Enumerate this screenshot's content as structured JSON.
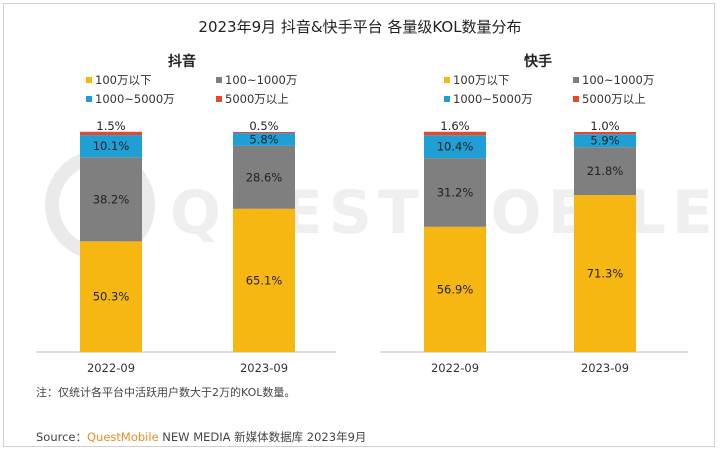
{
  "title": "2023年9月 抖音&快手平台 各量级KOL数量分布",
  "note": "注：仅统计各平台中活跃用户数大于2万的KOL数量。",
  "source": {
    "label": "Source：",
    "brand": "QuestMobile",
    "text": " NEW MEDIA 新媒体数据库 2023年9月"
  },
  "watermark": "QUESTMOBILE",
  "colors": {
    "100万以下": "#f6b713",
    "100~1000万": "#7f7f7f",
    "1000~5000万": "#1f9fd4",
    "5000万以上": "#e2492d"
  },
  "chart_data": [
    {
      "type": "bar",
      "stacked": true,
      "title": "抖音",
      "categories": [
        "2022-09",
        "2023-09"
      ],
      "series": [
        {
          "name": "100万以下",
          "values": [
            50.3,
            65.1
          ]
        },
        {
          "name": "100~1000万",
          "values": [
            38.2,
            28.6
          ]
        },
        {
          "name": "1000~5000万",
          "values": [
            10.1,
            5.8
          ]
        },
        {
          "name": "5000万以上",
          "values": [
            1.5,
            0.5
          ]
        }
      ],
      "ylim": [
        0,
        100
      ],
      "value_suffix": "%",
      "legend": "top"
    },
    {
      "type": "bar",
      "stacked": true,
      "title": "快手",
      "categories": [
        "2022-09",
        "2023-09"
      ],
      "series": [
        {
          "name": "100万以下",
          "values": [
            56.9,
            71.3
          ]
        },
        {
          "name": "100~1000万",
          "values": [
            31.2,
            21.8
          ]
        },
        {
          "name": "1000~5000万",
          "values": [
            10.4,
            5.9
          ]
        },
        {
          "name": "5000万以上",
          "values": [
            1.6,
            1.0
          ]
        }
      ],
      "ylim": [
        0,
        100
      ],
      "value_suffix": "%",
      "legend": "top"
    }
  ]
}
